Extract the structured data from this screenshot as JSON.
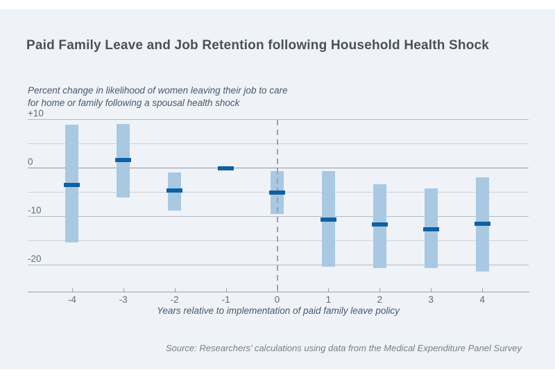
{
  "source": {
    "text": "Source: Researchers’ calculations using data from the Medical Expenditure Panel Survey"
  },
  "chart_data": {
    "type": "bar",
    "title": "Paid Family Leave and Job Retention following Household Health Shock",
    "subtitle_line1": "Percent change in likelihood of women leaving their job to care",
    "subtitle_line2": "for home or family following a spousal health shock",
    "xlabel": "Years relative to implementation of paid family leave policy",
    "ylabel": "",
    "x": [
      -4,
      -3,
      -2,
      -1,
      0,
      1,
      2,
      3,
      4
    ],
    "series": [
      {
        "name": "point_estimate",
        "values": [
          -3.5,
          1.6,
          -4.7,
          0,
          -5.0,
          -10.6,
          -11.7,
          -12.6,
          -11.5
        ]
      },
      {
        "name": "ci_low",
        "values": [
          -15.4,
          -6.1,
          -8.8,
          0,
          -9.5,
          -20.4,
          -20.6,
          -20.7,
          -21.4
        ]
      },
      {
        "name": "ci_high",
        "values": [
          9.0,
          9.1,
          -0.9,
          0,
          -0.7,
          -0.7,
          -3.4,
          -4.2,
          -1.9
        ]
      }
    ],
    "ylim": [
      -25,
      11
    ],
    "gridlines": [
      10,
      5,
      0,
      -5,
      -10,
      -15,
      -20
    ],
    "y_axis_labels": [
      {
        "value": 10,
        "label": "+10"
      },
      {
        "value": 0,
        "label": "0"
      },
      {
        "value": -10,
        "label": "-10"
      },
      {
        "value": -20,
        "label": "-20"
      }
    ],
    "reference_line_x": 0,
    "grid": true,
    "legend": false
  }
}
